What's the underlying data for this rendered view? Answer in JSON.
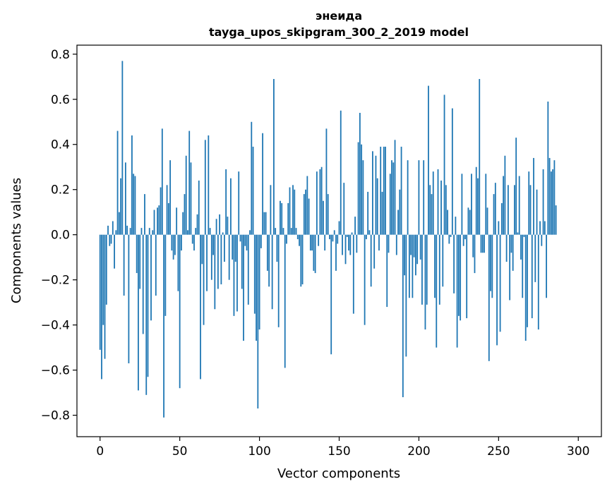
{
  "chart_data": {
    "type": "bar",
    "title": "энеида",
    "subtitle": "tayga_upos_skipgram_300_2_2019 model",
    "xlabel": "Vector components",
    "ylabel": "Components values",
    "xlim": [
      -14.5,
      314.5
    ],
    "ylim": [
      -0.895,
      0.84
    ],
    "x_ticks": [
      0,
      50,
      100,
      150,
      200,
      250,
      300
    ],
    "y_ticks": [
      -0.8,
      -0.6,
      -0.4,
      -0.2,
      0.0,
      0.2,
      0.4,
      0.6,
      0.8
    ],
    "x_tick_labels": [
      "0",
      "50",
      "100",
      "150",
      "200",
      "250",
      "300"
    ],
    "y_tick_labels": [
      "−0.8",
      "−0.6",
      "−0.4",
      "−0.2",
      "0.0",
      "0.2",
      "0.4",
      "0.6",
      "0.8"
    ],
    "bar_color": "#1f77b4",
    "values": [
      -0.51,
      -0.64,
      -0.4,
      -0.55,
      -0.31,
      0.04,
      -0.05,
      -0.04,
      0.06,
      -0.15,
      0.02,
      0.46,
      0.1,
      0.25,
      0.77,
      -0.27,
      0.32,
      0.04,
      -0.57,
      0.03,
      0.44,
      0.27,
      0.26,
      -0.17,
      -0.69,
      -0.24,
      0.03,
      -0.44,
      0.18,
      -0.71,
      -0.63,
      0.03,
      -0.38,
      0.02,
      0.11,
      -0.27,
      0.12,
      0.13,
      0.21,
      0.47,
      -0.81,
      -0.36,
      0.22,
      0.14,
      0.33,
      -0.07,
      -0.11,
      -0.09,
      0.12,
      -0.25,
      -0.68,
      -0.07,
      0.1,
      0.18,
      0.35,
      0.02,
      0.46,
      0.32,
      -0.04,
      -0.07,
      0.03,
      0.09,
      0.24,
      -0.64,
      -0.13,
      -0.4,
      0.42,
      -0.25,
      0.44,
      0.03,
      -0.2,
      -0.09,
      -0.33,
      0.07,
      -0.24,
      0.09,
      -0.22,
      0.01,
      -0.12,
      0.29,
      0.08,
      -0.2,
      0.25,
      -0.11,
      -0.36,
      -0.12,
      -0.34,
      0.28,
      -0.03,
      -0.24,
      -0.47,
      -0.05,
      -0.07,
      -0.31,
      0.02,
      0.5,
      0.39,
      -0.35,
      -0.47,
      -0.77,
      -0.42,
      -0.06,
      0.45,
      0.1,
      0.1,
      -0.16,
      -0.23,
      0.22,
      -0.33,
      0.69,
      0.03,
      -0.12,
      -0.41,
      0.15,
      0.14,
      0.03,
      -0.59,
      -0.04,
      0.14,
      0.21,
      0.03,
      0.22,
      0.2,
      0.03,
      -0.02,
      -0.05,
      -0.23,
      -0.22,
      0.18,
      0.2,
      0.26,
      0.16,
      -0.07,
      -0.07,
      -0.16,
      -0.17,
      0.28,
      -0.05,
      0.29,
      0.3,
      0.15,
      -0.07,
      0.47,
      0.18,
      -0.02,
      -0.53,
      -0.03,
      0.02,
      -0.16,
      -0.04,
      0.06,
      0.55,
      -0.09,
      0.23,
      -0.13,
      -0.01,
      -0.07,
      -0.09,
      0.01,
      -0.35,
      0.08,
      -0.08,
      0.41,
      0.54,
      0.4,
      0.33,
      -0.4,
      -0.02,
      0.19,
      0.02,
      -0.23,
      0.37,
      -0.15,
      0.35,
      0.25,
      -0.07,
      0.39,
      0.19,
      0.39,
      0.39,
      -0.32,
      -0.08,
      0.27,
      0.33,
      0.32,
      0.42,
      -0.09,
      0.11,
      0.2,
      0.39,
      -0.72,
      -0.18,
      -0.54,
      0.33,
      -0.28,
      -0.09,
      -0.28,
      -0.1,
      -0.18,
      -0.13,
      0.33,
      -0.11,
      -0.31,
      0.33,
      -0.42,
      -0.31,
      0.66,
      0.22,
      0.18,
      0.28,
      -0.28,
      -0.5,
      0.29,
      -0.31,
      0.24,
      -0.23,
      0.62,
      0.22,
      0.11,
      -0.04,
      -0.01,
      0.56,
      -0.26,
      0.08,
      -0.5,
      -0.36,
      -0.38,
      0.27,
      -0.05,
      -0.02,
      -0.37,
      0.12,
      0.11,
      0.27,
      -0.1,
      -0.17,
      0.3,
      0.25,
      0.69,
      -0.08,
      -0.08,
      -0.08,
      0.27,
      0.12,
      -0.56,
      -0.25,
      -0.28,
      0.18,
      0.23,
      -0.49,
      0.06,
      -0.43,
      0.14,
      0.26,
      0.35,
      -0.12,
      0.22,
      -0.29,
      -0.08,
      -0.16,
      0.22,
      0.43,
      0.01,
      0.26,
      -0.11,
      -0.28,
      -0.01,
      -0.47,
      -0.41,
      0.28,
      0.22,
      -0.37,
      0.34,
      -0.21,
      0.2,
      -0.42,
      0.06,
      -0.05,
      0.29,
      0.06,
      -0.28,
      0.59,
      0.34,
      0.28,
      0.29,
      0.33,
      0.13
    ]
  }
}
